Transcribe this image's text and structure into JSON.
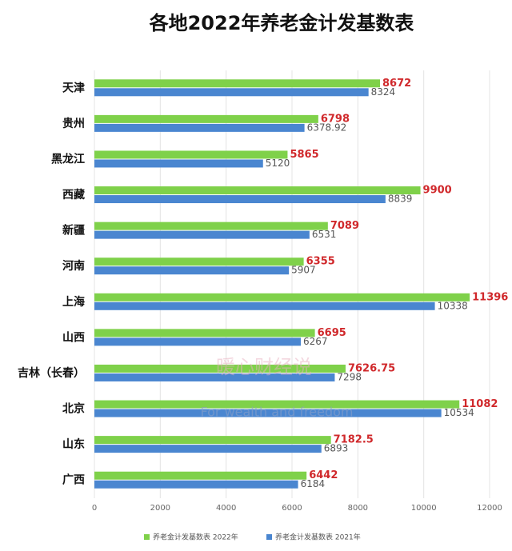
{
  "chart_data": {
    "type": "bar",
    "orientation": "horizontal",
    "title": "各地2022年养老金计发基数表",
    "categories": [
      "天津",
      "贵州",
      "黑龙江",
      "西藏",
      "新疆",
      "河南",
      "上海",
      "山西",
      "吉林（长春）",
      "北京",
      "山东",
      "广西"
    ],
    "series": [
      {
        "name": "养老金计发基数表 2022年",
        "color": "#7fd14a",
        "label_color": "#d0282b",
        "values": [
          8672,
          6798,
          5865,
          9900,
          7089,
          6355,
          11396,
          6695,
          7626.75,
          11082,
          7182.5,
          6442
        ]
      },
      {
        "name": "养老金计发基数表 2021年",
        "color": "#4a86d0",
        "label_color": "#555555",
        "values": [
          8324,
          6378.92,
          5120,
          8839,
          6531,
          5907,
          10338,
          6267,
          7298,
          10534,
          6893,
          6184
        ]
      }
    ],
    "xlim": [
      0,
      12000
    ],
    "xticks": [
      0,
      2000,
      4000,
      6000,
      8000,
      10000,
      12000
    ],
    "grid": true,
    "legend": "bottom",
    "watermark": [
      "暖心财经说",
      "For wealth and freedom"
    ]
  }
}
